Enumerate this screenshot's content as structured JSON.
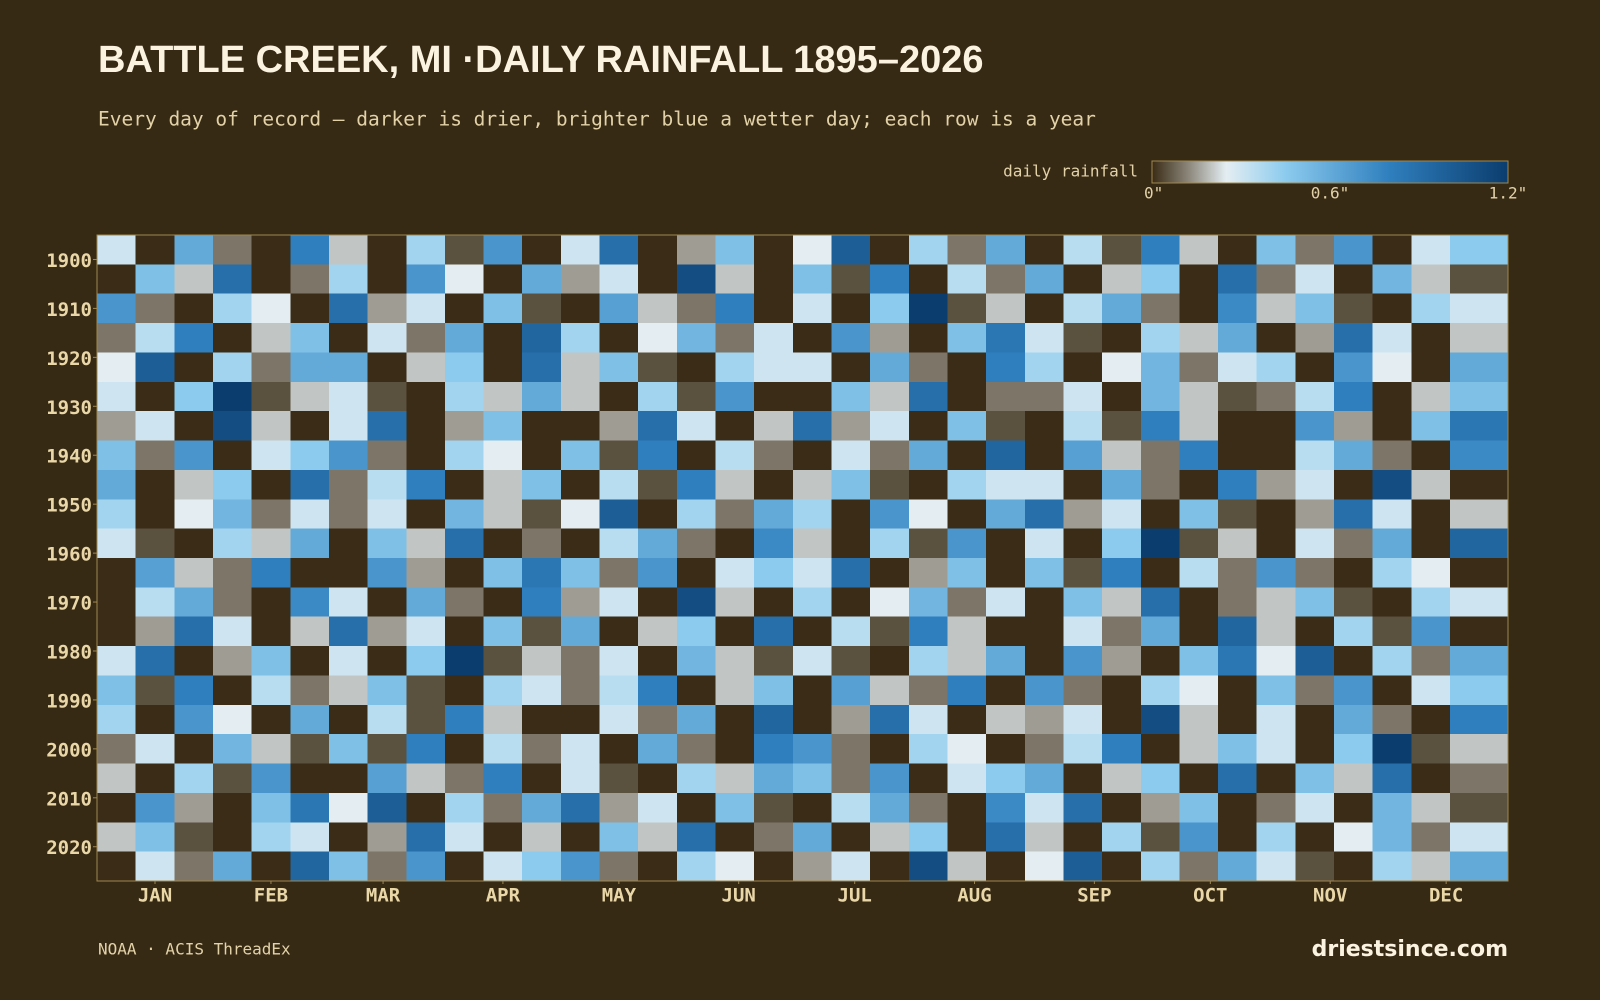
{
  "chart_data": {
    "type": "heatmap",
    "title": "BATTLE CREEK, MI ·DAILY RAINFALL 1895–2026",
    "subtitle": "Every day of record — darker is drier, brighter blue a wetter day; each row is a year",
    "colorbar_label": "daily rainfall",
    "colorbar_lim": [
      0,
      1.2
    ],
    "colorbar_ticks": [
      {
        "value": 0,
        "label": "0\""
      },
      {
        "value": 0.6,
        "label": "0.6\""
      },
      {
        "value": 1.2,
        "label": "1.2\""
      }
    ],
    "colorscale": [
      [
        0,
        "#3a2c16"
      ],
      [
        0.12,
        "#8a8478"
      ],
      [
        0.25,
        "#e4eef2"
      ],
      [
        0.45,
        "#8ccbee"
      ],
      [
        0.8,
        "#2f7fbe"
      ],
      [
        1.2,
        "#0b3d6e"
      ]
    ],
    "xlim": [
      1,
      366
    ],
    "xticks": [
      {
        "value": 16,
        "label": "JAN"
      },
      {
        "value": 46,
        "label": "FEB"
      },
      {
        "value": 75,
        "label": "MAR"
      },
      {
        "value": 106,
        "label": "APR"
      },
      {
        "value": 136,
        "label": "MAY"
      },
      {
        "value": 167,
        "label": "JUN"
      },
      {
        "value": 197,
        "label": "JUL"
      },
      {
        "value": 228,
        "label": "AUG"
      },
      {
        "value": 259,
        "label": "SEP"
      },
      {
        "value": 289,
        "label": "OCT"
      },
      {
        "value": 320,
        "label": "NOV"
      },
      {
        "value": 350,
        "label": "DEC"
      }
    ],
    "ylim": [
      1895,
      2027
    ],
    "yticks": [
      1900,
      1910,
      1920,
      1930,
      1940,
      1950,
      1960,
      1970,
      1980,
      1990,
      2000,
      2010,
      2020
    ],
    "xbins": [
      1,
      11,
      21,
      31,
      41,
      51,
      61,
      71,
      81,
      91,
      101,
      111,
      121,
      131,
      141,
      151,
      161,
      171,
      181,
      191,
      201,
      211,
      221,
      231,
      241,
      251,
      261,
      271,
      281,
      291,
      301,
      311,
      321,
      331,
      341,
      351,
      366
    ],
    "ybins": [
      1895,
      1901,
      1907,
      1913,
      1919,
      1925,
      1931,
      1937,
      1943,
      1949,
      1955,
      1961,
      1967,
      1973,
      1979,
      1985,
      1991,
      1997,
      2003,
      2009,
      2015,
      2021,
      2027
    ],
    "values": [
      [
        0.3,
        0,
        0.6,
        0.1,
        0,
        0.8,
        0.2,
        0,
        0.4,
        0.05,
        0.7,
        0,
        0.3,
        0.9,
        0,
        0.15,
        0.5,
        0,
        0.25,
        1.0,
        0,
        0.4,
        0.1,
        0.6,
        0,
        0.35,
        0.05,
        0.8,
        0.2,
        0,
        0.5,
        0.1,
        0.7,
        0,
        0.3,
        0.45
      ],
      [
        0,
        0.5,
        0.2,
        0.9,
        0,
        0.1,
        0.4,
        0,
        0.7,
        0.25,
        0,
        0.6,
        0.15,
        0.3,
        0,
        1.1,
        0.2,
        0,
        0.5,
        0.05,
        0.8,
        0,
        0.35,
        0.1,
        0.6,
        0,
        0.2,
        0.45,
        0,
        0.9,
        0.1,
        0.3,
        0,
        0.55,
        0.2,
        0.05
      ],
      [
        0.7,
        0.1,
        0,
        0.4,
        0.25,
        0,
        0.9,
        0.15,
        0.3,
        0,
        0.5,
        0.05,
        0,
        0.65,
        0.2,
        0.1,
        0.8,
        0,
        0.3,
        0,
        0.45,
        1.2,
        0.05,
        0.2,
        0,
        0.35,
        0.6,
        0.1,
        0,
        0.75,
        0.2,
        0.5,
        0.05,
        0,
        0.4,
        0.3
      ],
      [
        0.1,
        0.35,
        0.8,
        0,
        0.2,
        0.5,
        0,
        0.3,
        0.1,
        0.6,
        0,
        0.95,
        0.4,
        0,
        0.25,
        0.55,
        0.1,
        0.3,
        0,
        0.7,
        0.15,
        0,
        0.5,
        0.85,
        0.3,
        0.05,
        0,
        0.4,
        0.2,
        0.6,
        0,
        0.15,
        0.9,
        0.3,
        0,
        0.2
      ],
      [
        0.25,
        1.0,
        0,
        0.4,
        0.1,
        0.6,
        0.6,
        0,
        0.2,
        0.45,
        0,
        0.9,
        0.2,
        0.5,
        0.05,
        0,
        0.4,
        0.3,
        0.3,
        0,
        0.6,
        0.1,
        0,
        0.8,
        0.4,
        0,
        0.25,
        0.55,
        0.1,
        0.3,
        0.4,
        0,
        0.7,
        0.25,
        0,
        0.6
      ],
      [
        0.3,
        0,
        0.45,
        1.2,
        0.05,
        0.2,
        0.3,
        0.05,
        0,
        0.4,
        0.2,
        0.6,
        0.2,
        0,
        0.4,
        0.05,
        0.7,
        0,
        0,
        0.5,
        0.2,
        0.9,
        0,
        0.1,
        0.1,
        0.3,
        0,
        0.55,
        0.2,
        0.05,
        0.1,
        0.35,
        0.8,
        0,
        0.2,
        0.5
      ],
      [
        0.15,
        0.3,
        0,
        1.1,
        0.2,
        0,
        0.3,
        0.9,
        0,
        0.15,
        0.5,
        0,
        0,
        0.15,
        0.9,
        0.3,
        0,
        0.2,
        0.9,
        0.15,
        0.3,
        0,
        0.5,
        0.05,
        0,
        0.35,
        0.05,
        0.8,
        0.2,
        0,
        0,
        0.7,
        0.15,
        0,
        0.5,
        0.85
      ],
      [
        0.5,
        0.1,
        0.7,
        0,
        0.3,
        0.45,
        0.7,
        0.1,
        0,
        0.4,
        0.25,
        0,
        0.5,
        0.05,
        0.8,
        0,
        0.35,
        0.1,
        0,
        0.3,
        0.1,
        0.6,
        0,
        0.95,
        0,
        0.65,
        0.2,
        0.1,
        0.8,
        0,
        0,
        0.35,
        0.6,
        0.1,
        0,
        0.75
      ],
      [
        0.6,
        0,
        0.2,
        0.45,
        0,
        0.9,
        0.1,
        0.35,
        0.8,
        0,
        0.2,
        0.5,
        0,
        0.35,
        0.05,
        0.8,
        0.2,
        0,
        0.2,
        0.5,
        0.05,
        0,
        0.4,
        0.3,
        0.3,
        0,
        0.6,
        0.1,
        0,
        0.8,
        0.15,
        0.3,
        0,
        1.1,
        0.2,
        0
      ],
      [
        0.4,
        0,
        0.25,
        0.55,
        0.1,
        0.3,
        0.1,
        0.3,
        0,
        0.55,
        0.2,
        0.05,
        0.25,
        1.0,
        0,
        0.4,
        0.1,
        0.6,
        0.4,
        0,
        0.7,
        0.25,
        0,
        0.6,
        0.9,
        0.15,
        0.3,
        0,
        0.5,
        0.05,
        0,
        0.15,
        0.9,
        0.3,
        0,
        0.2
      ],
      [
        0.3,
        0.05,
        0,
        0.4,
        0.2,
        0.6,
        0,
        0.5,
        0.2,
        0.9,
        0,
        0.1,
        0,
        0.35,
        0.6,
        0.1,
        0,
        0.75,
        0.2,
        0,
        0.4,
        0.05,
        0.7,
        0,
        0.3,
        0,
        0.45,
        1.2,
        0.05,
        0.2,
        0,
        0.3,
        0.1,
        0.6,
        0,
        0.95
      ],
      [
        0,
        0.65,
        0.2,
        0.1,
        0.8,
        0,
        0,
        0.7,
        0.15,
        0,
        0.5,
        0.85,
        0.5,
        0.1,
        0.7,
        0,
        0.3,
        0.45,
        0.3,
        0.9,
        0,
        0.15,
        0.5,
        0,
        0.5,
        0.05,
        0.8,
        0,
        0.35,
        0.1,
        0.7,
        0.1,
        0,
        0.4,
        0.25,
        0
      ],
      [
        0,
        0.35,
        0.6,
        0.1,
        0,
        0.75,
        0.3,
        0,
        0.6,
        0.1,
        0,
        0.8,
        0.15,
        0.3,
        0,
        1.1,
        0.2,
        0,
        0.4,
        0,
        0.25,
        0.55,
        0.1,
        0.3,
        0,
        0.5,
        0.2,
        0.9,
        0,
        0.1,
        0.2,
        0.5,
        0.05,
        0,
        0.4,
        0.3
      ],
      [
        0,
        0.15,
        0.9,
        0.3,
        0,
        0.2,
        0.9,
        0.15,
        0.3,
        0,
        0.5,
        0.05,
        0.6,
        0,
        0.2,
        0.45,
        0,
        0.9,
        0,
        0.35,
        0.05,
        0.8,
        0.2,
        0,
        0,
        0.3,
        0.1,
        0.6,
        0,
        0.95,
        0.2,
        0,
        0.4,
        0.05,
        0.7,
        0
      ],
      [
        0.3,
        0.9,
        0,
        0.15,
        0.5,
        0,
        0.3,
        0,
        0.45,
        1.2,
        0.05,
        0.2,
        0.1,
        0.3,
        0,
        0.55,
        0.2,
        0.05,
        0.3,
        0.05,
        0,
        0.4,
        0.2,
        0.6,
        0,
        0.7,
        0.15,
        0,
        0.5,
        0.85,
        0.25,
        1.0,
        0,
        0.4,
        0.1,
        0.6
      ],
      [
        0.5,
        0.05,
        0.8,
        0,
        0.35,
        0.1,
        0.2,
        0.5,
        0.05,
        0,
        0.4,
        0.3,
        0.1,
        0.35,
        0.8,
        0,
        0.2,
        0.5,
        0,
        0.65,
        0.2,
        0.1,
        0.8,
        0,
        0.7,
        0.1,
        0,
        0.4,
        0.25,
        0,
        0.5,
        0.1,
        0.7,
        0,
        0.3,
        0.45
      ],
      [
        0.4,
        0,
        0.7,
        0.25,
        0,
        0.6,
        0,
        0.35,
        0.05,
        0.8,
        0.2,
        0,
        0,
        0.3,
        0.1,
        0.6,
        0,
        0.95,
        0,
        0.15,
        0.9,
        0.3,
        0,
        0.2,
        0.15,
        0.3,
        0,
        1.1,
        0.2,
        0,
        0.3,
        0,
        0.6,
        0.1,
        0,
        0.8
      ],
      [
        0.1,
        0.3,
        0,
        0.55,
        0.2,
        0.05,
        0.5,
        0.05,
        0.8,
        0,
        0.35,
        0.1,
        0.3,
        0,
        0.6,
        0.1,
        0,
        0.8,
        0.7,
        0.1,
        0,
        0.4,
        0.25,
        0,
        0.1,
        0.35,
        0.8,
        0,
        0.2,
        0.5,
        0.3,
        0,
        0.45,
        1.2,
        0.05,
        0.2
      ],
      [
        0.2,
        0,
        0.4,
        0.05,
        0.7,
        0,
        0,
        0.65,
        0.2,
        0.1,
        0.8,
        0,
        0.3,
        0.05,
        0,
        0.4,
        0.2,
        0.6,
        0.5,
        0.1,
        0.7,
        0,
        0.3,
        0.45,
        0.6,
        0,
        0.2,
        0.45,
        0,
        0.9,
        0,
        0.5,
        0.2,
        0.9,
        0,
        0.1
      ],
      [
        0,
        0.7,
        0.15,
        0,
        0.5,
        0.85,
        0.25,
        1.0,
        0,
        0.4,
        0.1,
        0.6,
        0.9,
        0.15,
        0.3,
        0,
        0.5,
        0.05,
        0,
        0.35,
        0.6,
        0.1,
        0,
        0.75,
        0.3,
        0.9,
        0,
        0.15,
        0.5,
        0,
        0.1,
        0.3,
        0,
        0.55,
        0.2,
        0.05
      ],
      [
        0.2,
        0.5,
        0.05,
        0,
        0.4,
        0.3,
        0,
        0.15,
        0.9,
        0.3,
        0,
        0.2,
        0,
        0.5,
        0.2,
        0.9,
        0,
        0.1,
        0.6,
        0,
        0.2,
        0.45,
        0,
        0.9,
        0.2,
        0,
        0.4,
        0.05,
        0.7,
        0,
        0.4,
        0,
        0.25,
        0.55,
        0.1,
        0.3
      ],
      [
        0,
        0.3,
        0.1,
        0.6,
        0,
        0.95,
        0.5,
        0.1,
        0.7,
        0,
        0.3,
        0.45,
        0.7,
        0.1,
        0,
        0.4,
        0.25,
        0,
        0.15,
        0.3,
        0,
        1.1,
        0.2,
        0,
        0.25,
        1.0,
        0,
        0.4,
        0.1,
        0.6,
        0.3,
        0.05,
        0,
        0.4,
        0.2,
        0.6
      ]
    ]
  },
  "footer": {
    "source": "NOAA · ACIS ThreadEx",
    "brand": "driestsince.com"
  }
}
